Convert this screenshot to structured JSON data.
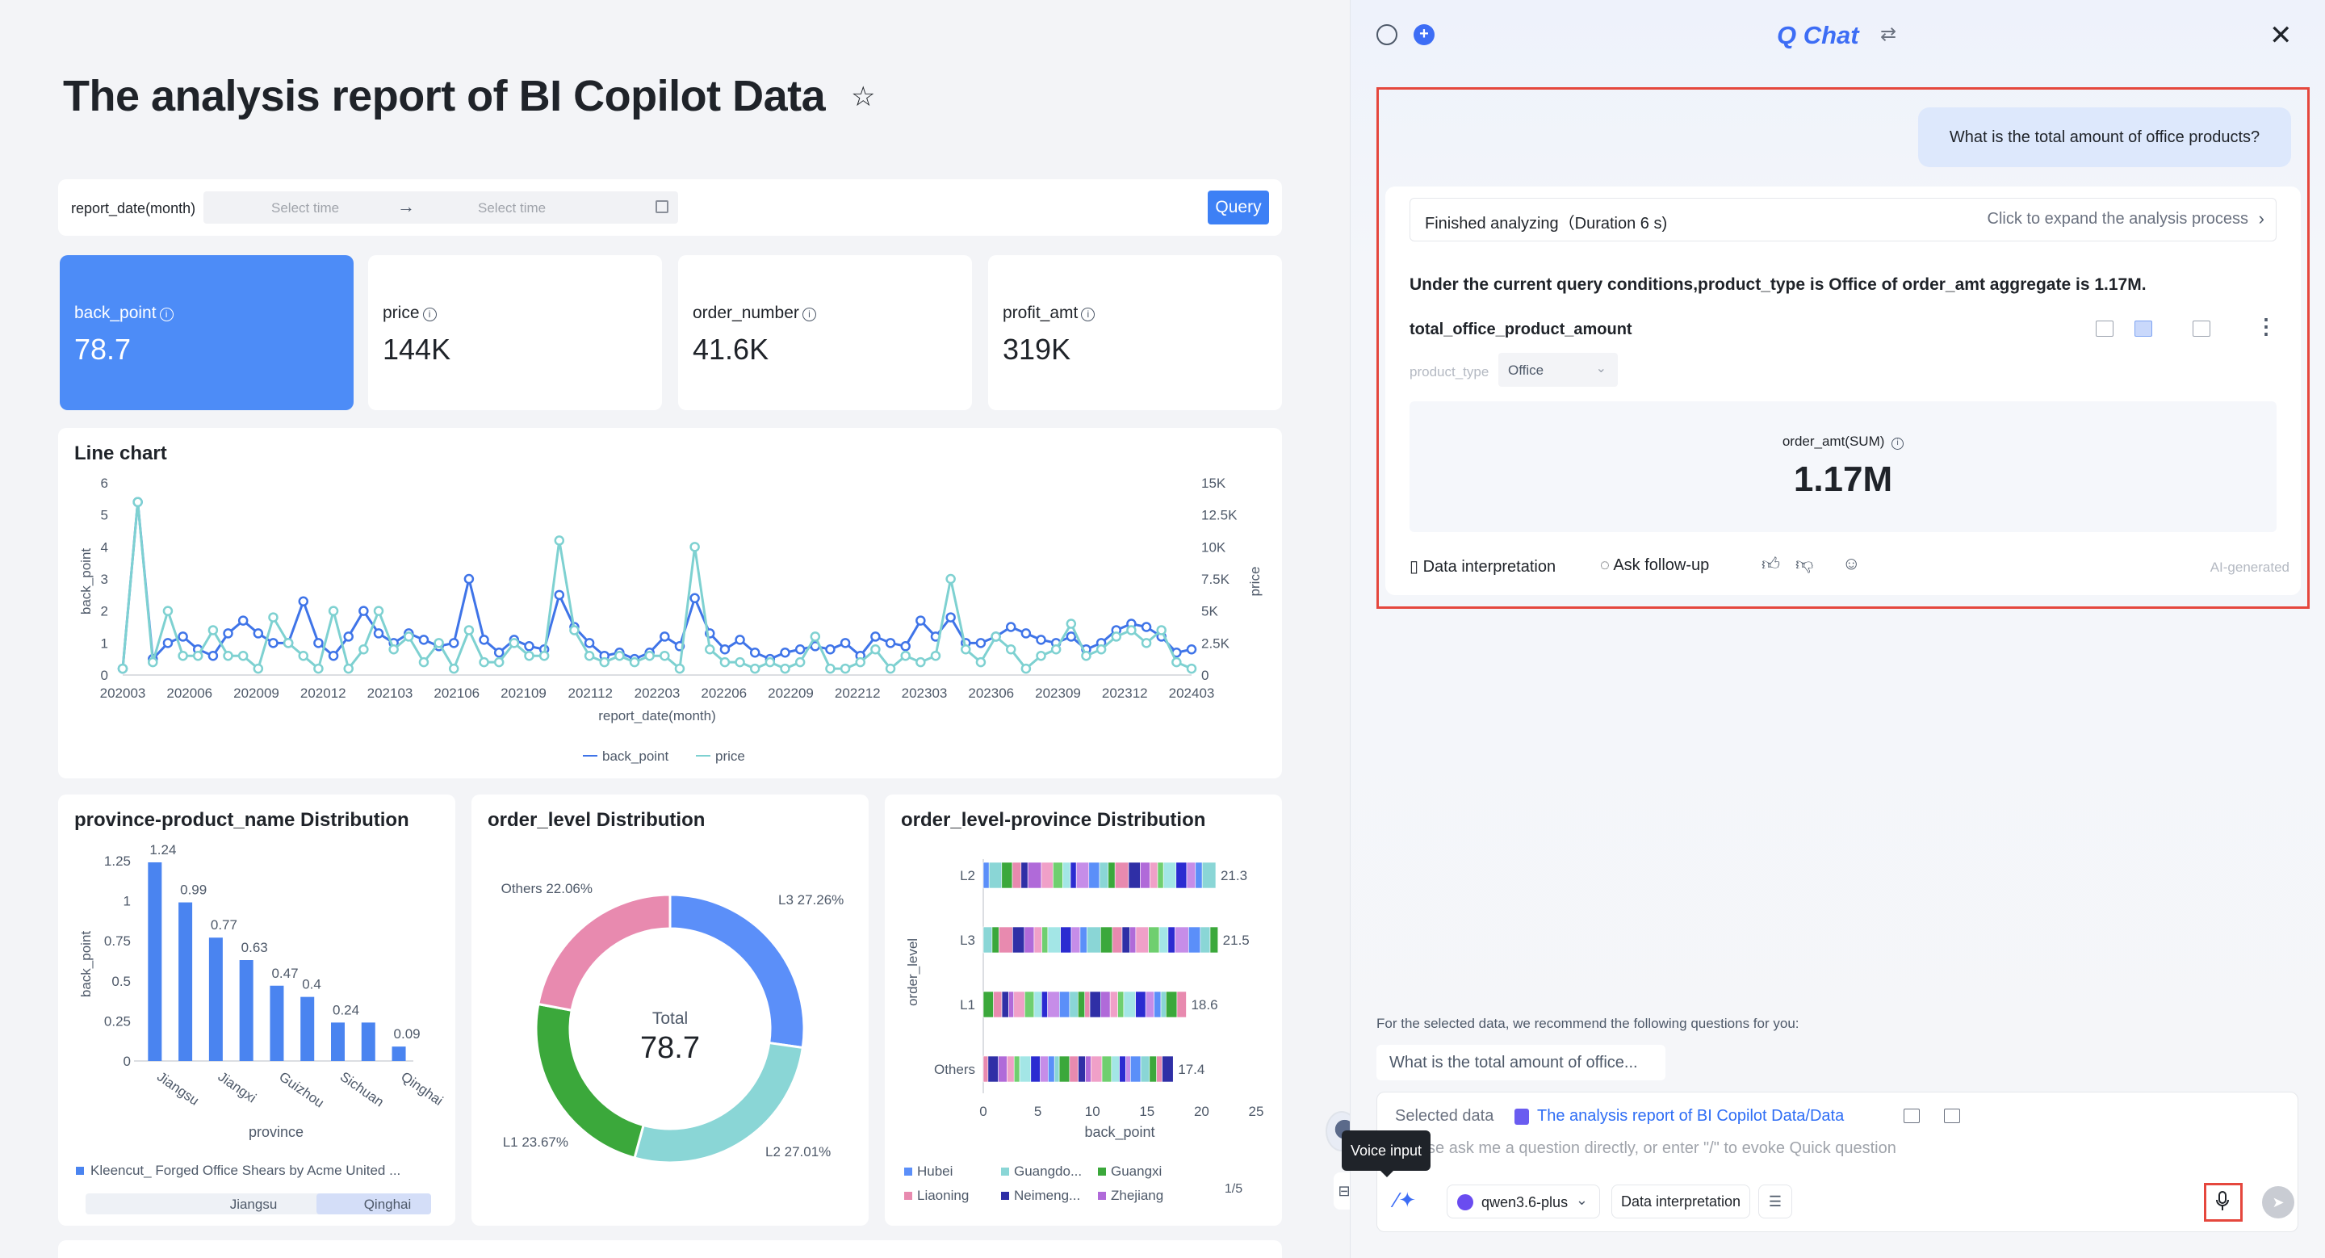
{
  "dashboard": {
    "title": "The analysis report of BI Copilot Data",
    "filter": {
      "label": "report_date(month)",
      "start_placeholder": "Select time",
      "end_placeholder": "Select time",
      "query_label": "Query"
    },
    "kpis": [
      {
        "label": "back_point",
        "value": "78.7"
      },
      {
        "label": "price",
        "value": "144K"
      },
      {
        "label": "order_number",
        "value": "41.6K"
      },
      {
        "label": "profit_amt",
        "value": "319K"
      }
    ],
    "info_glyph": "i"
  },
  "chart_data": [
    {
      "type": "line",
      "title": "Line chart",
      "xlabel": "report_date(month)",
      "ylabel": "back_point",
      "y2label": "price",
      "x_ticks": [
        "202003",
        "202006",
        "202009",
        "202012",
        "202103",
        "202106",
        "202109",
        "202112",
        "202203",
        "202206",
        "202209",
        "202212",
        "202303",
        "202306",
        "202309",
        "202312",
        "202403"
      ],
      "y_ticks": [
        "0",
        "1",
        "2",
        "3",
        "4",
        "5",
        "6"
      ],
      "y2_ticks": [
        "0",
        "2.5K",
        "5K",
        "7.5K",
        "10K",
        "12.5K",
        "15K"
      ],
      "ylim": [
        0,
        6
      ],
      "y2lim": [
        0,
        15000
      ],
      "series": [
        {
          "name": "back_point",
          "color": "#3f74e8",
          "values": [
            0.2,
            5.4,
            0.5,
            1.0,
            1.2,
            0.8,
            0.6,
            1.3,
            1.7,
            1.3,
            1.0,
            1.0,
            2.3,
            1.0,
            0.6,
            1.2,
            2.0,
            1.3,
            1.0,
            1.3,
            1.1,
            0.9,
            1.0,
            3.0,
            1.1,
            0.7,
            1.1,
            0.9,
            0.8,
            2.5,
            1.5,
            1.0,
            0.6,
            0.7,
            0.5,
            0.7,
            1.2,
            0.9,
            2.4,
            1.3,
            0.8,
            1.1,
            0.7,
            0.5,
            0.7,
            0.8,
            0.9,
            0.8,
            1.0,
            0.6,
            1.2,
            1.0,
            0.9,
            1.7,
            1.2,
            1.8,
            1.0,
            1.0,
            1.2,
            1.5,
            1.3,
            1.1,
            1.0,
            1.2,
            0.8,
            1.0,
            1.4,
            1.6,
            1.5,
            1.2,
            0.7,
            0.8
          ]
        },
        {
          "name": "price",
          "color": "#7ed1d1",
          "values": [
            500,
            13500,
            1000,
            5000,
            1500,
            1500,
            3500,
            1500,
            1500,
            500,
            4500,
            2500,
            1500,
            500,
            5000,
            500,
            2000,
            5000,
            2000,
            3000,
            1000,
            2500,
            500,
            3500,
            1000,
            1000,
            2500,
            1500,
            1500,
            10500,
            3500,
            1500,
            1000,
            1500,
            1000,
            1500,
            1500,
            500,
            10000,
            2000,
            1000,
            1000,
            500,
            1000,
            500,
            1000,
            3000,
            500,
            500,
            1000,
            2000,
            500,
            1500,
            1000,
            1500,
            7500,
            2000,
            1000,
            3000,
            2000,
            500,
            1500,
            2000,
            4000,
            1500,
            2000,
            3000,
            3500,
            2500,
            3500,
            1000,
            500
          ]
        }
      ],
      "legend": [
        "back_point",
        "price"
      ]
    },
    {
      "type": "bar",
      "title": "province-product_name Distribution",
      "xlabel": "province",
      "ylabel": "back_point",
      "categories": [
        "Jiangsu",
        "",
        "Jiangxi",
        "",
        "Guizhou",
        "",
        "Sichuan",
        "",
        "Qinghai"
      ],
      "values": [
        1.24,
        0.99,
        0.77,
        0.63,
        0.47,
        0.4,
        0.24,
        0.24,
        0.09
      ],
      "data_labels": [
        "1.24",
        "0.99",
        "0.77",
        "0.63",
        "0.47",
        "0.4",
        "0.24",
        "",
        "0.09"
      ],
      "y_ticks": [
        "0",
        "0.25",
        "0.5",
        "0.75",
        "1",
        "1.25"
      ],
      "ylim": [
        0,
        1.25
      ],
      "color": "#4a84f0",
      "legend": [
        "Kleencut_ Forged Office Shears by Acme United ..."
      ],
      "slider_labels": [
        "Jiangsu",
        "Qinghai"
      ]
    },
    {
      "type": "pie",
      "title": "order_level Distribution",
      "center_label": "Total",
      "center_value": "78.7",
      "slices": [
        {
          "label": "L3 27.26%",
          "value": 27.26,
          "color": "#5b8ff9"
        },
        {
          "label": "L2 27.01%",
          "value": 27.01,
          "color": "#8ad6d6"
        },
        {
          "label": "L1 23.67%",
          "value": 23.67,
          "color": "#3ba83b"
        },
        {
          "label": "Others 22.06%",
          "value": 22.06,
          "color": "#e88aaf"
        }
      ]
    },
    {
      "type": "bar",
      "orientation": "horizontal-stacked",
      "title": "order_level-province Distribution",
      "xlabel": "back_point",
      "ylabel": "order_level",
      "categories": [
        "L2",
        "L3",
        "L1",
        "Others"
      ],
      "totals": [
        21.3,
        21.5,
        18.6,
        17.4
      ],
      "total_labels": [
        "21.3",
        "21.5",
        "18.6",
        "17.4"
      ],
      "x_ticks": [
        "0",
        "5",
        "10",
        "15",
        "20",
        "25"
      ],
      "xlim": [
        0,
        25
      ],
      "legend": [
        "Hubei",
        "Guangdo...",
        "Guangxi",
        "Liaoning",
        "Neimeng...",
        "Zhejiang"
      ],
      "legend_colors": [
        "#5b8ff9",
        "#8ad6d6",
        "#3ba83b",
        "#e88aaf",
        "#2f2fa6",
        "#b06ad9"
      ],
      "legend_page": "1/5"
    }
  ],
  "chat": {
    "title": "Q Chat",
    "user_question": "What is the total amount of office products?",
    "status": "Finished analyzing（Duration 6 s)",
    "expand_link": "Click to expand the analysis process",
    "answer": "Under the current query conditions,product_type is Office of order_amt aggregate is 1.17M.",
    "metric_name": "total_office_product_amount",
    "dim_label": "product_type",
    "dim_value": "Office",
    "metric_label": "order_amt(SUM)",
    "metric_value": "1.17M",
    "actions": {
      "interpret": "Data interpretation",
      "follow_up": "Ask follow-up",
      "ai_tag": "AI-generated"
    },
    "rec_title": "For the selected data, we recommend the following questions for you:",
    "rec_question": "What is the total amount of office...",
    "selected_label": "Selected data",
    "selected_link": "The analysis report of BI Copilot Data/Data",
    "input_placeholder": "Please ask me a question directly, or enter \"/\" to evoke Quick question",
    "model": "qwen3.6-plus",
    "interpret_chip": "Data interpretation",
    "tooltip": "Voice input"
  }
}
